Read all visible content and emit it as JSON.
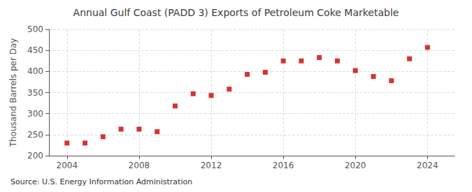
{
  "chart_data": {
    "type": "scatter",
    "title": "Annual Gulf Coast (PADD 3) Exports of Petroleum Coke Marketable",
    "ylabel": "Thousand Barrels per Day",
    "source": "Source: U.S. Energy Information Administration",
    "x": [
      2004,
      2005,
      2006,
      2007,
      2008,
      2009,
      2010,
      2011,
      2012,
      2013,
      2014,
      2015,
      2016,
      2017,
      2018,
      2019,
      2020,
      2021,
      2022,
      2023,
      2024
    ],
    "values": [
      230,
      230,
      245,
      263,
      263,
      257,
      318,
      347,
      343,
      358,
      393,
      398,
      425,
      425,
      433,
      425,
      402,
      388,
      378,
      430,
      457
    ],
    "color": "#cc0000",
    "marker": "square",
    "xlim": [
      2003,
      2025.5
    ],
    "ylim": [
      200,
      500
    ],
    "xticks": [
      2004,
      2008,
      2012,
      2016,
      2020,
      2024
    ],
    "yticks": [
      200,
      250,
      300,
      350,
      400,
      450,
      500
    ],
    "grid": true
  }
}
